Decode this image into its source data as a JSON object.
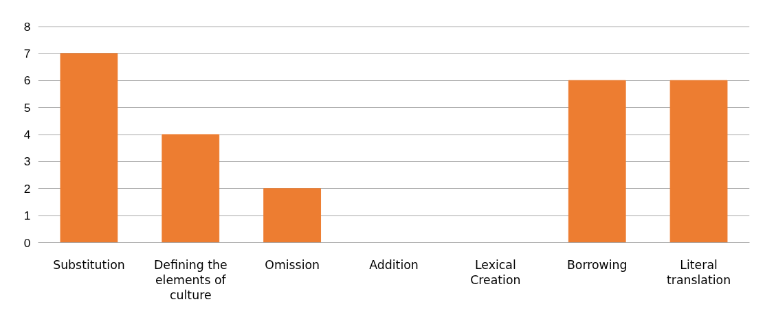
{
  "chart_data": {
    "type": "bar",
    "categories": [
      "Substitution",
      "Defining the elements of culture",
      "Omission",
      "Addition",
      "Lexical Creation",
      "Borrowing",
      "Literal translation"
    ],
    "values": [
      7,
      4,
      2,
      0,
      0,
      6,
      6
    ],
    "color": "#ed7d31",
    "ylim": [
      0,
      8
    ],
    "yticks": [
      0,
      1,
      2,
      3,
      4,
      5,
      6,
      7,
      8
    ],
    "grid": "y"
  }
}
